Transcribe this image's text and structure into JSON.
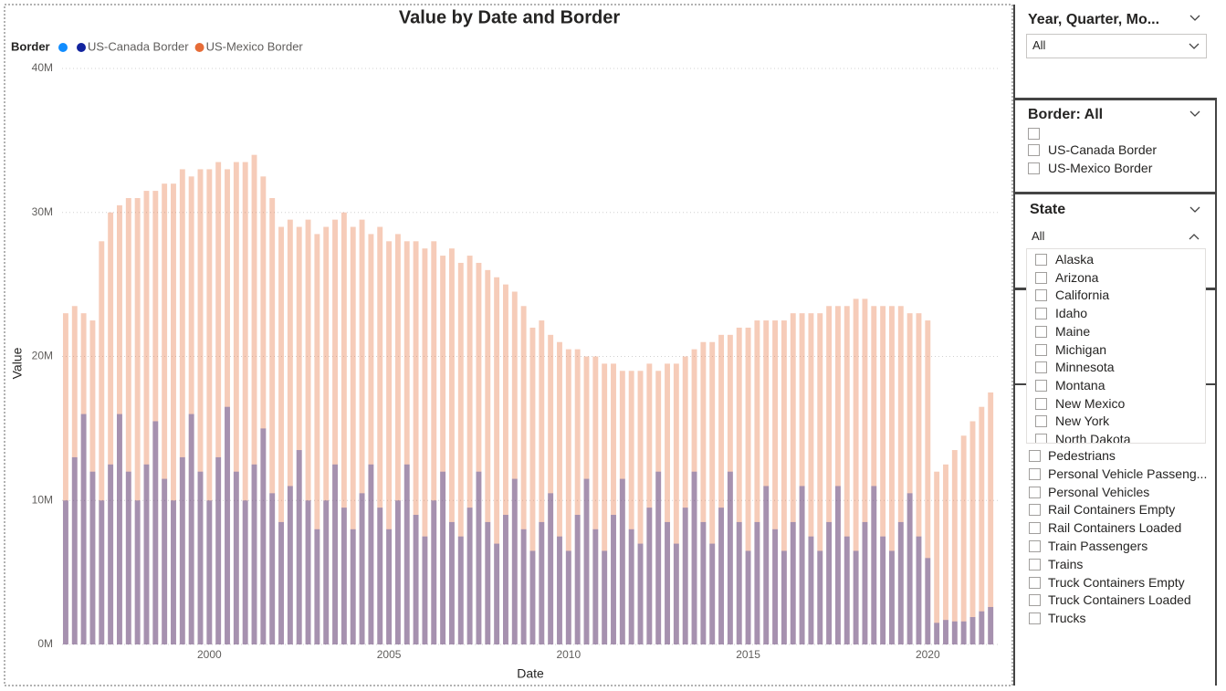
{
  "chart_data": {
    "type": "bar",
    "title": "Value by Date and Border",
    "legend_title": "Border",
    "x_label": "Date",
    "y_label": "Value",
    "x": [
      1996,
      1996.25,
      1996.5,
      1996.75,
      1997,
      1997.25,
      1997.5,
      1997.75,
      1998,
      1998.25,
      1998.5,
      1998.75,
      1999,
      1999.25,
      1999.5,
      1999.75,
      2000,
      2000.25,
      2000.5,
      2000.75,
      2001,
      2001.25,
      2001.5,
      2001.75,
      2002,
      2002.25,
      2002.5,
      2002.75,
      2003,
      2003.25,
      2003.5,
      2003.75,
      2004,
      2004.25,
      2004.5,
      2004.75,
      2005,
      2005.25,
      2005.5,
      2005.75,
      2006,
      2006.25,
      2006.5,
      2006.75,
      2007,
      2007.25,
      2007.5,
      2007.75,
      2008,
      2008.25,
      2008.5,
      2008.75,
      2009,
      2009.25,
      2009.5,
      2009.75,
      2010,
      2010.25,
      2010.5,
      2010.75,
      2011,
      2011.25,
      2011.5,
      2011.75,
      2012,
      2012.25,
      2012.5,
      2012.75,
      2013,
      2013.25,
      2013.5,
      2013.75,
      2014,
      2014.25,
      2014.5,
      2014.75,
      2015,
      2015.25,
      2015.5,
      2015.75,
      2016,
      2016.25,
      2016.5,
      2016.75,
      2017,
      2017.25,
      2017.5,
      2017.75,
      2018,
      2018.25,
      2018.5,
      2018.75,
      2019,
      2019.25,
      2019.5,
      2019.75,
      2020,
      2020.25,
      2020.5,
      2020.75,
      2021,
      2021.25,
      2021.5,
      2021.75
    ],
    "xlim": [
      1995.9,
      2022
    ],
    "xticks": [
      2000,
      2005,
      2010,
      2015,
      2020
    ],
    "ylim": [
      0,
      40000000
    ],
    "yticks": [
      {
        "value": 0,
        "label": "0M"
      },
      {
        "value": 10000000,
        "label": "10M"
      },
      {
        "value": 20000000,
        "label": "20M"
      },
      {
        "value": 30000000,
        "label": "30M"
      },
      {
        "value": 40000000,
        "label": "40M"
      }
    ],
    "grid": true,
    "series": [
      {
        "name": "US-Canada Border",
        "color": "#12239e",
        "values": [
          10000000.0,
          13000000.0,
          16000000.0,
          12000000.0,
          10000000.0,
          12500000.0,
          16000000.0,
          12000000.0,
          10000000.0,
          12500000.0,
          15500000.0,
          11500000.0,
          10000000.0,
          13000000.0,
          16000000.0,
          12000000.0,
          10000000.0,
          13000000.0,
          16500000.0,
          12000000.0,
          10000000.0,
          12500000.0,
          15000000.0,
          10500000.0,
          8500000.0,
          11000000.0,
          13500000.0,
          10000000.0,
          8000000.0,
          10000000.0,
          12500000.0,
          9500000.0,
          8000000.0,
          10500000.0,
          12500000.0,
          9500000.0,
          8000000.0,
          10000000.0,
          12500000.0,
          9000000.0,
          7500000.0,
          10000000.0,
          12000000.0,
          8500000.0,
          7500000.0,
          9500000.0,
          12000000.0,
          8500000.0,
          7000000.0,
          9000000.0,
          11500000.0,
          8000000.0,
          6500000.0,
          8500000.0,
          10500000.0,
          7500000.0,
          6500000.0,
          9000000.0,
          11500000.0,
          8000000.0,
          6500000.0,
          9000000.0,
          11500000.0,
          8000000.0,
          7000000.0,
          9500000.0,
          12000000.0,
          8500000.0,
          7000000.0,
          9500000.0,
          12000000.0,
          8500000.0,
          7000000.0,
          9500000.0,
          12000000.0,
          8500000.0,
          6500000.0,
          8500000.0,
          11000000.0,
          8000000.0,
          6500000.0,
          8500000.0,
          11000000.0,
          7500000.0,
          6500000.0,
          8500000.0,
          11000000.0,
          7500000.0,
          6500000.0,
          8500000.0,
          11000000.0,
          7500000.0,
          6500000.0,
          8500000.0,
          10500000.0,
          7500000.0,
          6000000.0,
          1500000.0,
          1700000.0,
          1600000.0,
          1600000.0,
          1900000.0,
          2300000.0,
          2600000.0
        ]
      },
      {
        "name": "US-Mexico Border",
        "color": "#e66c37",
        "values": [
          23000000.0,
          23500000.0,
          23000000.0,
          22500000.0,
          28000000.0,
          30000000.0,
          30500000.0,
          31000000.0,
          31000000.0,
          31500000.0,
          31500000.0,
          32000000.0,
          32000000.0,
          33000000.0,
          32500000.0,
          33000000.0,
          33000000.0,
          33500000.0,
          33000000.0,
          33500000.0,
          33500000.0,
          34000000.0,
          32500000.0,
          31000000.0,
          29000000.0,
          29500000.0,
          29000000.0,
          29500000.0,
          28500000.0,
          29000000.0,
          29500000.0,
          30000000.0,
          29000000.0,
          29500000.0,
          28500000.0,
          29000000.0,
          28000000.0,
          28500000.0,
          28000000.0,
          28000000.0,
          27500000.0,
          28000000.0,
          27000000.0,
          27500000.0,
          26500000.0,
          27000000.0,
          26500000.0,
          26000000.0,
          25500000.0,
          25000000.0,
          24500000.0,
          23500000.0,
          22000000.0,
          22500000.0,
          21500000.0,
          21000000.0,
          20500000.0,
          20500000.0,
          20000000.0,
          20000000.0,
          19500000.0,
          19500000.0,
          19000000.0,
          19000000.0,
          19000000.0,
          19500000.0,
          19000000.0,
          19500000.0,
          19500000.0,
          20000000.0,
          20500000.0,
          21000000.0,
          21000000.0,
          21500000.0,
          21500000.0,
          22000000.0,
          22000000.0,
          22500000.0,
          22500000.0,
          22500000.0,
          22500000.0,
          23000000.0,
          23000000.0,
          23000000.0,
          23000000.0,
          23500000.0,
          23500000.0,
          23500000.0,
          24000000.0,
          24000000.0,
          23500000.0,
          23500000.0,
          23500000.0,
          23500000.0,
          23000000.0,
          23000000.0,
          22500000.0,
          12000000.0,
          12500000.0,
          13500000.0,
          14500000.0,
          15500000.0,
          16500000.0,
          17500000.0
        ]
      }
    ]
  },
  "slicers": {
    "year": {
      "title": "Year, Quarter, Mo...",
      "value": "All"
    },
    "border": {
      "title": "Border: All",
      "items": [
        "US-Canada Border",
        "US-Mexico Border"
      ]
    },
    "state": {
      "title": "State",
      "value": "All",
      "items": [
        "Alaska",
        "Arizona",
        "California",
        "Idaho",
        "Maine",
        "Michigan",
        "Minnesota",
        "Montana",
        "New Mexico",
        "New York",
        "North Dakota"
      ]
    },
    "measure": {
      "items": [
        "Pedestrians",
        "Personal Vehicle Passeng...",
        "Personal Vehicles",
        "Rail Containers Empty",
        "Rail Containers Loaded",
        "Train Passengers",
        "Trains",
        "Truck Containers Empty",
        "Truck Containers Loaded",
        "Trucks"
      ]
    }
  }
}
